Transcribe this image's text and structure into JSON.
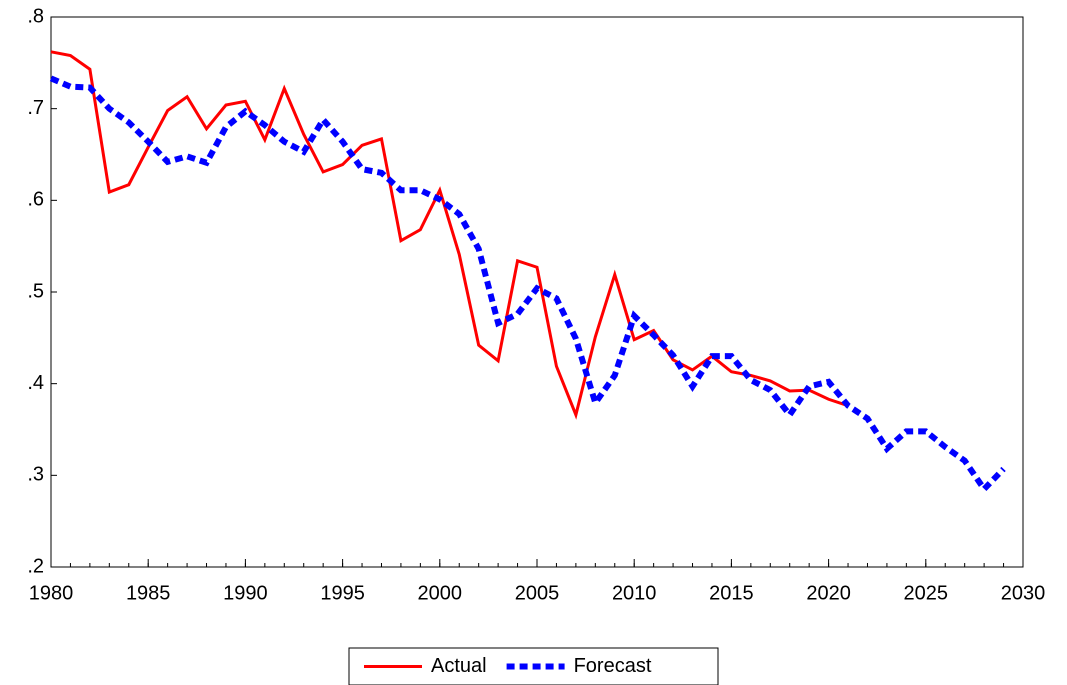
{
  "chart_data": {
    "type": "line",
    "x": [
      1980,
      1981,
      1982,
      1983,
      1984,
      1985,
      1986,
      1987,
      1988,
      1989,
      1990,
      1991,
      1992,
      1993,
      1994,
      1995,
      1996,
      1997,
      1998,
      1999,
      2000,
      2001,
      2002,
      2003,
      2004,
      2005,
      2006,
      2007,
      2008,
      2009,
      2010,
      2011,
      2012,
      2013,
      2014,
      2015,
      2016,
      2017,
      2018,
      2019,
      2020,
      2021,
      2022,
      2023,
      2024,
      2025,
      2026,
      2027,
      2028,
      2029
    ],
    "series": [
      {
        "name": "Actual",
        "color": "#ff0000",
        "dash": false,
        "values": [
          0.762,
          0.758,
          0.743,
          0.609,
          0.617,
          0.658,
          0.698,
          0.713,
          0.678,
          0.704,
          0.708,
          0.666,
          0.722,
          0.672,
          0.631,
          0.639,
          0.66,
          0.667,
          0.556,
          0.568,
          0.611,
          0.541,
          0.442,
          0.425,
          0.534,
          0.527,
          0.419,
          0.366,
          0.451,
          0.519,
          0.448,
          0.458,
          0.426,
          0.415,
          0.43,
          0.413,
          0.409,
          0.403,
          0.392,
          0.393,
          0.383,
          0.376,
          null,
          null,
          null,
          null,
          null,
          null,
          null,
          null
        ]
      },
      {
        "name": "Forecast",
        "color": "#0000ff",
        "dash": true,
        "values": [
          0.733,
          0.724,
          0.723,
          0.7,
          0.685,
          0.664,
          0.642,
          0.648,
          0.641,
          0.68,
          0.697,
          0.682,
          0.664,
          0.653,
          0.688,
          0.664,
          0.634,
          0.63,
          0.611,
          0.611,
          0.601,
          0.585,
          0.547,
          0.466,
          0.476,
          0.504,
          0.493,
          0.449,
          0.379,
          0.409,
          0.474,
          0.453,
          0.431,
          0.397,
          0.43,
          0.43,
          0.404,
          0.393,
          0.366,
          0.397,
          0.402,
          0.376,
          0.362,
          0.329,
          0.348,
          0.348,
          0.331,
          0.316,
          0.285,
          0.307
        ]
      }
    ],
    "xlim": [
      1980,
      2030
    ],
    "xticks": [
      1980,
      1985,
      1990,
      1995,
      2000,
      2005,
      2010,
      2015,
      2020,
      2025,
      2030
    ],
    "ylim": [
      0.2,
      0.8
    ],
    "yticks": [
      {
        "value": 0.2,
        "label": ".2"
      },
      {
        "value": 0.3,
        "label": ".3"
      },
      {
        "value": 0.4,
        "label": ".4"
      },
      {
        "value": 0.5,
        "label": ".5"
      },
      {
        "value": 0.6,
        "label": ".6"
      },
      {
        "value": 0.7,
        "label": ".7"
      },
      {
        "value": 0.8,
        "label": ".8"
      }
    ],
    "grid": false,
    "legend": "bottom"
  }
}
